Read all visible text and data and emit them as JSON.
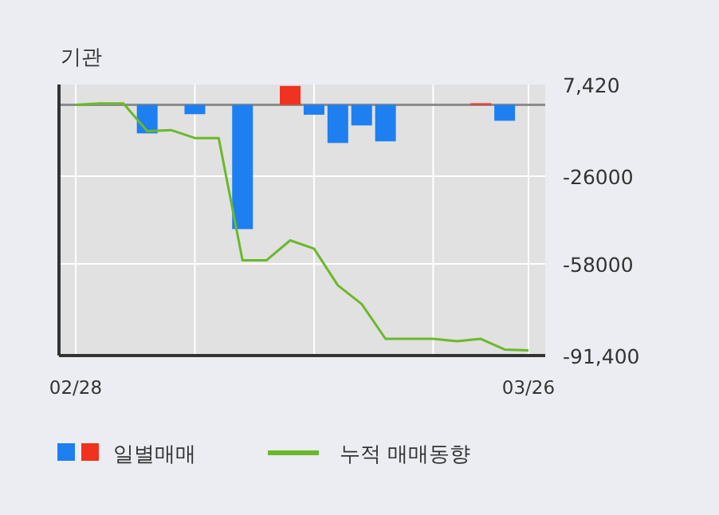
{
  "chart_data": {
    "type": "bar",
    "title": "기관",
    "categories": [
      "02/28",
      null,
      null,
      null,
      null,
      null,
      null,
      null,
      null,
      null,
      null,
      null,
      null,
      null,
      null,
      null,
      null,
      null,
      null,
      "03/26"
    ],
    "series": [
      {
        "name": "일별매매",
        "colors": [
          "#1e7ff0",
          "#1e7ff0",
          "#1e7ff0",
          "#1e7ff0",
          "#1e7ff0",
          "#1e7ff0",
          "#1e7ff0",
          "#1e7ff0",
          "#1e7ff0",
          "#f0321e",
          "#1e7ff0",
          "#1e7ff0",
          "#1e7ff0",
          "#1e7ff0",
          "#1e7ff0",
          "#1e7ff0",
          "#1e7ff0",
          "#f0321e",
          "#1e7ff0",
          "#1e7ff0"
        ],
        "values": [
          0,
          0,
          0,
          -10400,
          0,
          -3400,
          0,
          -45300,
          0,
          6900,
          -3600,
          -13900,
          -7500,
          -13300,
          0,
          0,
          0,
          600,
          -5800,
          0
        ]
      },
      {
        "name": "누적 매매동향",
        "type": "line",
        "color": "#6ab92a",
        "values": [
          0,
          500,
          500,
          -9600,
          -9200,
          -12100,
          -12100,
          -56700,
          -56700,
          -49400,
          -52400,
          -65800,
          -72600,
          -85300,
          -85300,
          -85300,
          -86200,
          -85300,
          -89200,
          -89500
        ]
      }
    ],
    "ylim": [
      -91400,
      7420
    ],
    "yticks": [
      {
        "value": 7420,
        "label": "7,420"
      },
      -26000,
      -58000,
      {
        "value": -91400,
        "label": "-91,400"
      }
    ],
    "grid": true,
    "legend": "bottom"
  }
}
